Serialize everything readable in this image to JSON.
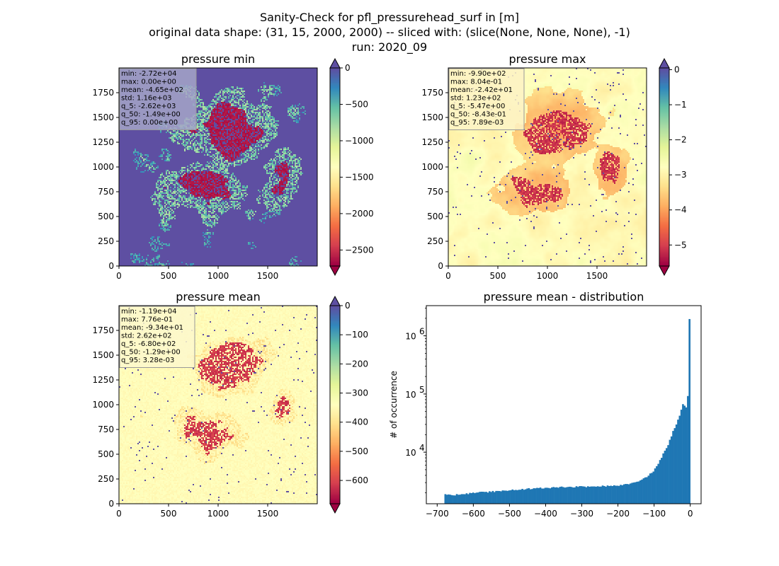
{
  "figure": {
    "suptitle_lines": [
      "Sanity-Check for pfl_pressurehead_surf in [m]",
      "original data shape: (31, 15, 2000, 2000) -- sliced with: (slice(None, None, None), -1)",
      "run: 2020_09"
    ]
  },
  "colormap": [
    "#9e0142",
    "#d53e4f",
    "#f46d43",
    "#fdae61",
    "#fee08b",
    "#ffffbf",
    "#e6f598",
    "#abdda4",
    "#66c2a5",
    "#3288bd",
    "#5e4fa2"
  ],
  "chart_data": [
    {
      "type": "heatmap",
      "title": "pressure min",
      "x_ticks": [
        0,
        500,
        1000,
        1500
      ],
      "y_ticks": [
        0,
        250,
        500,
        750,
        1000,
        1250,
        1500,
        1750
      ],
      "extent": [
        0,
        2000
      ],
      "colorbar": {
        "vmin": -2720,
        "vmax": 0,
        "ticks": [
          0,
          -500,
          -1000,
          -1500,
          -2000,
          -2500
        ],
        "extend_min": true,
        "extend_max": true
      },
      "stats": [
        "min: -2.72e+04",
        "max: 0.00e+00",
        "mean: -4.65e+02",
        "std: 1.16e+03",
        "q_5: -2.62e+03",
        "q_50: -1.49e+00",
        "q_95: 0.00e+00"
      ],
      "stats_box_color": "#a5a5c8"
    },
    {
      "type": "heatmap",
      "title": "pressure max",
      "x_ticks": [
        0,
        500,
        1000,
        1500
      ],
      "y_ticks": [
        0,
        250,
        500,
        750,
        1000,
        1250,
        1500,
        1750
      ],
      "extent": [
        0,
        2000
      ],
      "colorbar": {
        "vmin": -5.6,
        "vmax": 0.05,
        "ticks": [
          0,
          -1,
          -2,
          -3,
          -4,
          -5
        ],
        "extend_min": true,
        "extend_max": true
      },
      "stats": [
        "min: -9.90e+02",
        "max: 8.04e-01",
        "mean: -2.42e+01",
        "std: 1.23e+02",
        "q_5: -5.47e+00",
        "q_50: -8.43e-01",
        "q_95: 7.89e-03"
      ],
      "stats_box_color": "#fdf2c4"
    },
    {
      "type": "heatmap",
      "title": "pressure mean",
      "x_ticks": [
        0,
        500,
        1000,
        1500
      ],
      "y_ticks": [
        0,
        250,
        500,
        750,
        1000,
        1250,
        1500,
        1750
      ],
      "extent": [
        0,
        2000
      ],
      "colorbar": {
        "vmin": -680,
        "vmax": 0,
        "ticks": [
          0,
          -100,
          -200,
          -300,
          -400,
          -500,
          -600
        ],
        "extend_min": true,
        "extend_max": true
      },
      "stats": [
        "min: -1.19e+04",
        "max: 7.76e-01",
        "mean: -9.34e+01",
        "std: 2.62e+02",
        "q_5: -6.80e+02",
        "q_50: -1.29e+00",
        "q_95: 3.28e-03"
      ],
      "stats_box_color": "#fdf8cc"
    },
    {
      "type": "bar",
      "title": "pressure mean - distribution",
      "ylabel": "# of occurrence",
      "y_scale": "log",
      "xlim": [
        -730,
        30
      ],
      "ylim": [
        1300,
        3300000
      ],
      "x_ticks": [
        -700,
        -600,
        -500,
        -400,
        -300,
        -200,
        -100,
        0
      ],
      "y_tick_exponents": [
        4,
        5,
        6
      ],
      "bar_color": "#1f77b4",
      "bins": {
        "start": -680,
        "end": 0,
        "count": 150
      },
      "counts_anchor": [
        [
          -680,
          1850
        ],
        [
          -650,
          1850
        ],
        [
          -600,
          2000
        ],
        [
          -550,
          2100
        ],
        [
          -500,
          2200
        ],
        [
          -450,
          2350
        ],
        [
          -400,
          2450
        ],
        [
          -350,
          2500
        ],
        [
          -300,
          2550
        ],
        [
          -250,
          2600
        ],
        [
          -200,
          2650
        ],
        [
          -150,
          3000
        ],
        [
          -120,
          3800
        ],
        [
          -100,
          4800
        ],
        [
          -80,
          8000
        ],
        [
          -60,
          14000
        ],
        [
          -45,
          25000
        ],
        [
          -30,
          40000
        ],
        [
          -20,
          70000
        ],
        [
          -12,
          55000
        ],
        [
          -6,
          100000
        ],
        [
          -2,
          2400000
        ]
      ]
    }
  ]
}
